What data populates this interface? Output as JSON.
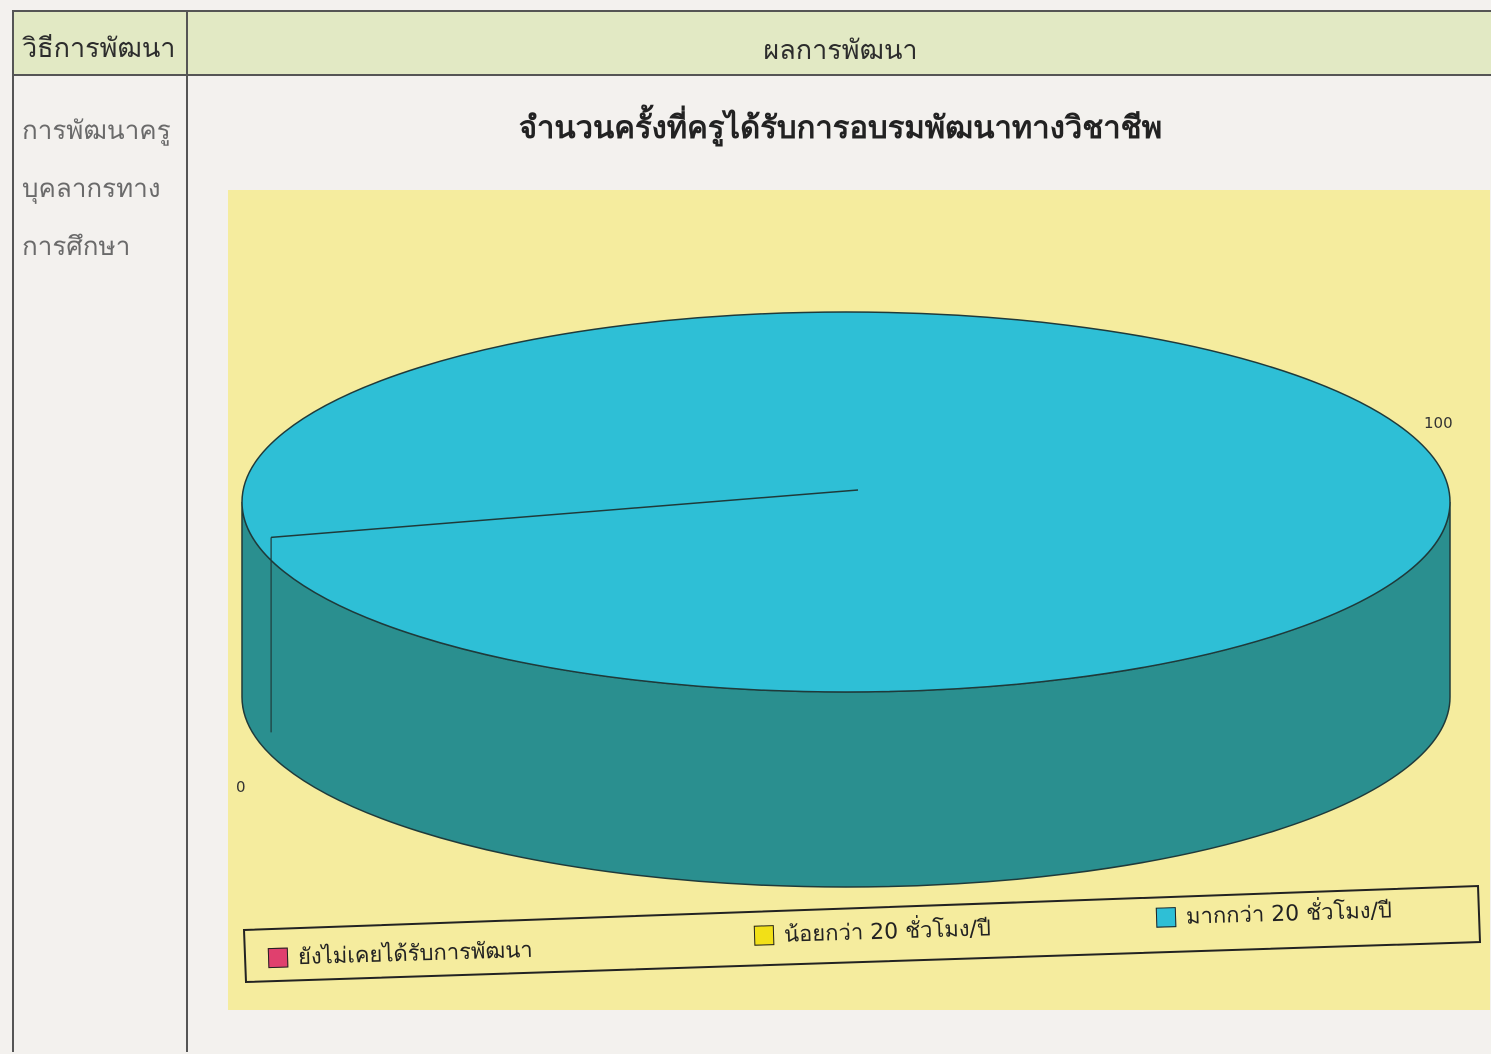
{
  "table": {
    "header_left": "วิธีการพัฒนา",
    "header_right": "ผลการพัฒนา",
    "left_cell_lines": [
      "การพัฒนาครู",
      "บุคลากรทาง",
      "การศึกษา"
    ]
  },
  "colors": {
    "header_bg": "#e2e9c4",
    "chart_bg": "#f5ec9e",
    "pie_top": "#2ebfd6",
    "pie_side": "#2a8f8f"
  },
  "chart_data": {
    "type": "pie",
    "title": "จำนวนครั้งที่ครูได้รับการอบรมพัฒนาทางวิชาชีพ",
    "style": "3d",
    "legend_position": "bottom",
    "slices": [
      {
        "label": "ยังไม่เคยได้รับการพัฒนา",
        "value": 0,
        "data_label": "0",
        "color": "#e0406e"
      },
      {
        "label": "น้อยกว่า 20 ชั่วโมง/ปี",
        "value": 0,
        "data_label": "",
        "color": "#f2e017"
      },
      {
        "label": "มากกว่า 20 ชั่วโมง/ปี",
        "value": 100,
        "data_label": "100",
        "color": "#2ebfd6"
      }
    ]
  }
}
